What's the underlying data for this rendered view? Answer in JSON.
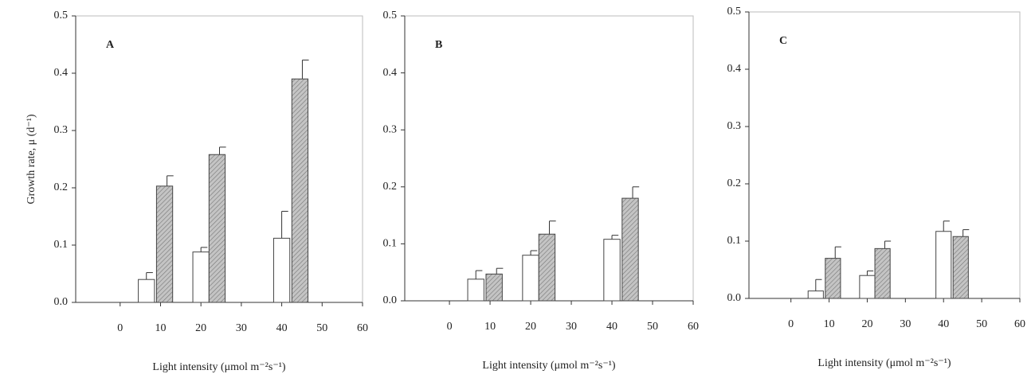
{
  "chart_data": [
    {
      "type": "bar",
      "label": "A",
      "y_label": "Growth rate, μ (d⁻¹)",
      "x_label": "Light intensity (μmol m⁻²s⁻¹)",
      "xlim": [
        -11,
        60
      ],
      "xticks": [
        0,
        10,
        20,
        30,
        40,
        50,
        60
      ],
      "ylim": [
        0,
        0.5
      ],
      "yticks": [
        {
          "value": 0,
          "label": "0.0"
        },
        0.1,
        0.2,
        0.3,
        0.4,
        0.5
      ],
      "series": [
        {
          "color": "#ffffff",
          "x": [
            6.5,
            20,
            40
          ],
          "values": [
            0.04,
            0.088,
            0.112
          ],
          "errors": [
            0.012,
            0.008,
            0.047
          ]
        },
        {
          "color": "#b8b8b8",
          "hatch": true,
          "x": [
            11,
            24,
            44.5
          ],
          "values": [
            0.203,
            0.258,
            0.39
          ],
          "errors": [
            0.018,
            0.013,
            0.033
          ]
        }
      ]
    },
    {
      "type": "bar",
      "label": "B",
      "x_label": "Light intensity (μmol m⁻²s⁻¹)",
      "xlim": [
        -11,
        60
      ],
      "xticks": [
        0,
        10,
        20,
        30,
        40,
        50,
        60
      ],
      "ylim": [
        0,
        0.5
      ],
      "yticks": [
        {
          "value": 0,
          "label": "0.0"
        },
        0.1,
        0.2,
        0.3,
        0.4,
        0.5
      ],
      "series": [
        {
          "color": "#ffffff",
          "x": [
            6.5,
            20,
            40
          ],
          "values": [
            0.038,
            0.08,
            0.108
          ],
          "errors": [
            0.015,
            0.008,
            0.007
          ]
        },
        {
          "color": "#b8b8b8",
          "hatch": true,
          "x": [
            11,
            24,
            44.5
          ],
          "values": [
            0.047,
            0.117,
            0.18
          ],
          "errors": [
            0.01,
            0.023,
            0.02
          ]
        }
      ]
    },
    {
      "type": "bar",
      "label": "C",
      "x_label": "Light intensity (μmol m⁻²s⁻¹)",
      "xlim": [
        -11,
        60
      ],
      "xticks": [
        0,
        10,
        20,
        30,
        40,
        50,
        60
      ],
      "ylim": [
        0,
        0.5
      ],
      "yticks": [
        {
          "value": 0,
          "label": "0.0"
        },
        0.1,
        0.2,
        0.3,
        0.4,
        0.5
      ],
      "series": [
        {
          "color": "#ffffff",
          "x": [
            6.5,
            20,
            40
          ],
          "values": [
            0.013,
            0.04,
            0.117
          ],
          "errors": [
            0.02,
            0.008,
            0.018
          ]
        },
        {
          "color": "#b8b8b8",
          "hatch": true,
          "x": [
            11,
            24,
            44.5
          ],
          "values": [
            0.07,
            0.087,
            0.108
          ],
          "errors": [
            0.02,
            0.013,
            0.012
          ]
        }
      ]
    }
  ]
}
